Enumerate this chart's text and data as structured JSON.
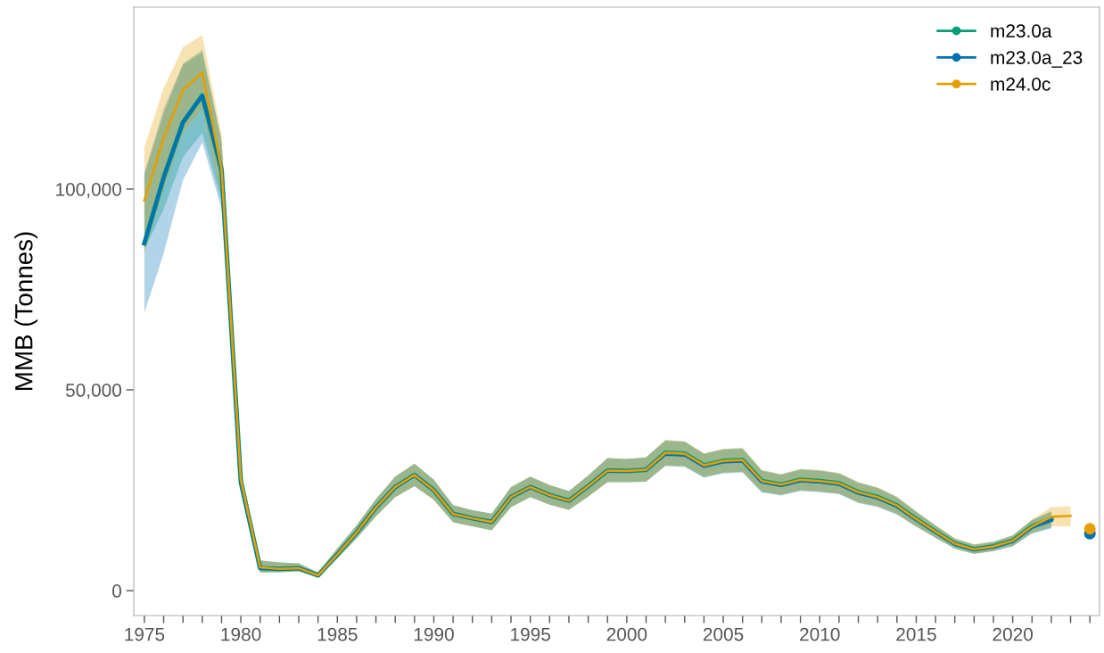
{
  "chart_data": {
    "type": "line",
    "ylabel": "MMB (Tonnes)",
    "legend": "top right",
    "grid": false,
    "xlim": [
      1974.45,
      2024.5
    ],
    "ylim": [
      -6200,
      145300
    ],
    "yticks": [
      {
        "value": 0,
        "label": "0"
      },
      {
        "value": 50000,
        "label": "50,000"
      },
      {
        "value": 100000,
        "label": "100,000"
      }
    ],
    "xticks": [
      1975,
      {
        "value": 1976,
        "label": null
      },
      {
        "value": 1977,
        "label": null
      },
      {
        "value": 1978,
        "label": null
      },
      {
        "value": 1979,
        "label": null
      },
      1980,
      {
        "value": 1981,
        "label": null
      },
      {
        "value": 1982,
        "label": null
      },
      {
        "value": 1983,
        "label": null
      },
      {
        "value": 1984,
        "label": null
      },
      1985,
      {
        "value": 1986,
        "label": null
      },
      {
        "value": 1987,
        "label": null
      },
      {
        "value": 1988,
        "label": null
      },
      {
        "value": 1989,
        "label": null
      },
      1990,
      {
        "value": 1991,
        "label": null
      },
      {
        "value": 1992,
        "label": null
      },
      {
        "value": 1993,
        "label": null
      },
      {
        "value": 1994,
        "label": null
      },
      1995,
      {
        "value": 1996,
        "label": null
      },
      {
        "value": 1997,
        "label": null
      },
      {
        "value": 1998,
        "label": null
      },
      {
        "value": 1999,
        "label": null
      },
      2000,
      {
        "value": 2001,
        "label": null
      },
      {
        "value": 2002,
        "label": null
      },
      {
        "value": 2003,
        "label": null
      },
      {
        "value": 2004,
        "label": null
      },
      2005,
      {
        "value": 2006,
        "label": null
      },
      {
        "value": 2007,
        "label": null
      },
      {
        "value": 2008,
        "label": null
      },
      {
        "value": 2009,
        "label": null
      },
      2010,
      {
        "value": 2011,
        "label": null
      },
      {
        "value": 2012,
        "label": null
      },
      {
        "value": 2013,
        "label": null
      },
      {
        "value": 2014,
        "label": null
      },
      2015,
      {
        "value": 2016,
        "label": null
      },
      {
        "value": 2017,
        "label": null
      },
      {
        "value": 2018,
        "label": null
      },
      {
        "value": 2019,
        "label": null
      },
      2020,
      {
        "value": 2021,
        "label": null
      },
      {
        "value": 2022,
        "label": null
      },
      {
        "value": 2023,
        "label": null
      },
      {
        "value": 2024,
        "label": null
      }
    ],
    "series": [
      {
        "name": "m23.0a",
        "color": "#009e73",
        "x": [
          1975,
          1976,
          1977,
          1978,
          1979,
          1980,
          1981,
          1982,
          1983,
          1984,
          1985,
          1986,
          1987,
          1988,
          1989,
          1990,
          1991,
          1992,
          1993,
          1994,
          1995,
          1996,
          1997,
          1998,
          1999,
          2000,
          2001,
          2002,
          2003,
          2004,
          2005,
          2006,
          2007,
          2008,
          2009,
          2010,
          2011,
          2012,
          2013,
          2014,
          2015,
          2016,
          2017,
          2018,
          2019,
          2020,
          2021,
          2022
        ],
        "values": [
          86500,
          102900,
          116600,
          123300,
          104800,
          27000,
          5600,
          5400,
          5600,
          3800,
          9000,
          14500,
          20700,
          25800,
          28800,
          25000,
          19100,
          18000,
          17100,
          23300,
          25800,
          23800,
          22400,
          26000,
          29900,
          29800,
          30100,
          34300,
          34100,
          31200,
          32300,
          32500,
          27300,
          26400,
          27600,
          27300,
          26700,
          24500,
          23300,
          21200,
          17800,
          14700,
          11700,
          10300,
          11000,
          12400,
          16000,
          17900
        ],
        "lower": [
          84900,
          95000,
          108000,
          114000,
          97000,
          25000,
          4500,
          4600,
          4800,
          3300,
          8000,
          13000,
          18500,
          23300,
          26000,
          22600,
          17000,
          16000,
          15000,
          20800,
          23300,
          21400,
          20100,
          23400,
          27000,
          27000,
          27100,
          31200,
          31000,
          28300,
          29400,
          29600,
          24600,
          23900,
          25000,
          24700,
          24200,
          22000,
          21000,
          19100,
          16000,
          13200,
          10500,
          9200,
          9900,
          11100,
          14400,
          15700
        ],
        "upper": [
          103600,
          118700,
          131200,
          134700,
          112000,
          30000,
          7500,
          7000,
          6800,
          4500,
          10500,
          16300,
          22800,
          28400,
          31600,
          27600,
          21300,
          20000,
          19200,
          25800,
          28400,
          26300,
          24800,
          28700,
          33000,
          32800,
          33200,
          37500,
          37200,
          34200,
          35300,
          35500,
          30000,
          29000,
          30300,
          30000,
          29300,
          27000,
          25700,
          23400,
          19700,
          16300,
          13000,
          11500,
          12200,
          13800,
          17700,
          19800
        ]
      },
      {
        "name": "m23.0a_23",
        "color": "#0072b2",
        "x": [
          1975,
          1976,
          1977,
          1978,
          1979,
          1980,
          1981,
          1982,
          1983,
          1984,
          1985,
          1986,
          1987,
          1988,
          1989,
          1990,
          1991,
          1992,
          1993,
          1994,
          1995,
          1996,
          1997,
          1998,
          1999,
          2000,
          2001,
          2002,
          2003,
          2004,
          2005,
          2006,
          2007,
          2008,
          2009,
          2010,
          2011,
          2012,
          2013,
          2014,
          2015,
          2016,
          2017,
          2018,
          2019,
          2020,
          2021,
          2022
        ],
        "values": [
          86500,
          102900,
          116600,
          123300,
          104800,
          27000,
          5600,
          5400,
          5600,
          3800,
          9000,
          14500,
          20700,
          25800,
          28800,
          25000,
          19100,
          18000,
          17100,
          23300,
          25800,
          23800,
          22400,
          26000,
          29900,
          29800,
          30100,
          34000,
          33800,
          31000,
          32100,
          32300,
          27100,
          26200,
          27400,
          27100,
          26500,
          24300,
          23100,
          21000,
          17700,
          14600,
          11600,
          10200,
          10900,
          12300,
          15800,
          17500
        ],
        "lower": [
          69200,
          84000,
          102200,
          111600,
          95100,
          25000,
          4500,
          4600,
          4800,
          3300,
          8000,
          13000,
          18500,
          23300,
          26000,
          22600,
          17000,
          16000,
          15000,
          20800,
          23300,
          21400,
          20100,
          23400,
          27000,
          27000,
          27100,
          31000,
          30800,
          28100,
          29200,
          29400,
          24400,
          23700,
          24800,
          24500,
          24000,
          21800,
          20800,
          18900,
          15900,
          13100,
          10400,
          9100,
          9800,
          11000,
          14200,
          15500
        ],
        "upper": [
          104000,
          120000,
          131000,
          134000,
          112000,
          30000,
          7500,
          7000,
          6800,
          4500,
          10500,
          16300,
          22800,
          28400,
          31600,
          27600,
          21300,
          20000,
          19200,
          25800,
          28400,
          26300,
          24800,
          28700,
          33000,
          32800,
          33200,
          37300,
          37000,
          34000,
          35100,
          35300,
          29800,
          28800,
          30100,
          29800,
          29100,
          26800,
          25500,
          23200,
          19600,
          16200,
          12900,
          11400,
          12100,
          13700,
          17500,
          19600
        ]
      },
      {
        "name": "m24.0c",
        "color": "#e69f00",
        "x": [
          1975,
          1976,
          1977,
          1978,
          1979,
          1980,
          1981,
          1982,
          1983,
          1984,
          1985,
          1986,
          1987,
          1988,
          1989,
          1990,
          1991,
          1992,
          1993,
          1994,
          1995,
          1996,
          1997,
          1998,
          1999,
          2000,
          2001,
          2002,
          2003,
          2004,
          2005,
          2006,
          2007,
          2008,
          2009,
          2010,
          2011,
          2012,
          2013,
          2014,
          2015,
          2016,
          2017,
          2018,
          2019,
          2020,
          2021,
          2022,
          2023
        ],
        "values": [
          97200,
          112700,
          124700,
          129000,
          105000,
          27500,
          5800,
          5400,
          5600,
          3800,
          9000,
          14500,
          20700,
          25800,
          28800,
          25000,
          19100,
          18000,
          17100,
          23300,
          25800,
          23800,
          22400,
          26000,
          29900,
          29800,
          30100,
          34300,
          34100,
          31200,
          32300,
          32500,
          27300,
          26400,
          27600,
          27300,
          26700,
          24500,
          23300,
          21200,
          17800,
          14700,
          11700,
          10300,
          11000,
          12400,
          16000,
          18400,
          18600
        ],
        "lower": [
          84000,
          100000,
          114000,
          120000,
          98000,
          25000,
          4500,
          4600,
          4800,
          3300,
          8000,
          13000,
          18500,
          23300,
          26000,
          22600,
          17000,
          16000,
          15000,
          20800,
          23300,
          21400,
          20100,
          23400,
          27000,
          27000,
          27100,
          31200,
          31000,
          28300,
          29400,
          29600,
          24600,
          23900,
          25000,
          24700,
          24200,
          22000,
          21000,
          19100,
          16000,
          13200,
          10500,
          9200,
          9900,
          11100,
          14400,
          16000,
          16000
        ],
        "upper": [
          110400,
          125200,
          135300,
          138300,
          113600,
          30000,
          7500,
          7000,
          6800,
          4500,
          10500,
          16300,
          22800,
          28400,
          31600,
          27600,
          21300,
          20000,
          19200,
          25800,
          28400,
          26300,
          24800,
          28700,
          33000,
          32800,
          33200,
          37500,
          37200,
          34200,
          35300,
          35500,
          30000,
          29000,
          30300,
          30000,
          29300,
          27000,
          25700,
          23400,
          19700,
          16300,
          13000,
          11500,
          12200,
          13800,
          17700,
          20800,
          21000
        ]
      },
      {
        "type": "scatter",
        "color": "#0072b2",
        "marker": "circle",
        "x": [
          2024
        ],
        "values": [
          14200
        ]
      },
      {
        "type": "scatter",
        "color": "#e69f00",
        "marker": "circle",
        "x": [
          2024
        ],
        "values": [
          15400
        ]
      }
    ]
  }
}
